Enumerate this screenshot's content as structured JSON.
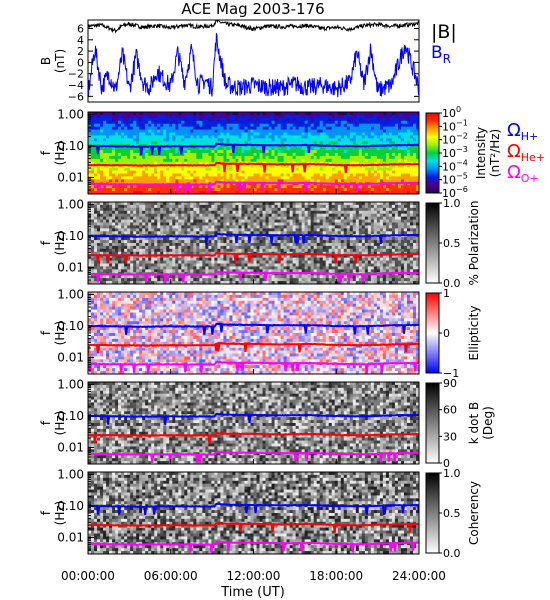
{
  "title": "ACE Mag 2003-176",
  "time_axis": {
    "label": "Time (UT)",
    "ticks": [
      "00:00:00",
      "06:00:00",
      "12:00:00",
      "18:00:00",
      "24:00:00"
    ],
    "hours": [
      0,
      6,
      12,
      18,
      24
    ],
    "range": [
      0,
      24
    ]
  },
  "freq_axis": {
    "ticks": [
      "1.00",
      "0.10",
      "0.01"
    ],
    "values": [
      1.0,
      0.1,
      0.01
    ],
    "range": [
      0.003,
      1.2
    ],
    "scale": "log"
  },
  "colors": {
    "b_total": "#000000",
    "b_r": "#0000ff",
    "omega_h": "#0000ff",
    "omega_he": "#ff0000",
    "omega_o": "#ff00ff"
  },
  "legend_labels": {
    "b_total": "|B|",
    "b_r_main": "B",
    "b_r_sub": "R",
    "omega_h_main": "Ω",
    "omega_h_sub": "H+",
    "omega_he_main": "Ω",
    "omega_he_sub": "He+",
    "omega_o_main": "Ω",
    "omega_o_sub": "O+"
  },
  "chart_data": [
    {
      "type": "line",
      "panel": "magnetic-field",
      "ylabel": "B",
      "yunit": "(nT)",
      "ylim": [
        -7,
        7.5
      ],
      "yticks": [
        -6,
        -4,
        -2,
        0,
        2,
        4,
        6
      ],
      "ytick_labels": [
        "−6",
        "−4",
        "−2",
        "0",
        "2",
        "4",
        "6"
      ],
      "series": [
        {
          "name": "|B|",
          "x": [
            0,
            1,
            2,
            2.5,
            3,
            4,
            5,
            6,
            7,
            8,
            9,
            9.3,
            10,
            11,
            12,
            13,
            14,
            15,
            16,
            17,
            18,
            19,
            20,
            21,
            22,
            23,
            24
          ],
          "values": [
            6.4,
            6.6,
            5.6,
            6.5,
            6.8,
            6.2,
            6.5,
            6.1,
            6.6,
            6.3,
            6.5,
            7.3,
            6.8,
            6.5,
            5.9,
            6.4,
            6.3,
            6.4,
            6.5,
            6.0,
            6.2,
            5.9,
            6.5,
            6.7,
            6.4,
            6.6,
            6.9
          ]
        },
        {
          "name": "B_R",
          "x": [
            0,
            0.5,
            1,
            1.5,
            2,
            2.5,
            3,
            3.5,
            4,
            4.5,
            5,
            5.5,
            6,
            6.5,
            7,
            7.5,
            8,
            8.5,
            9,
            9.3,
            10,
            11,
            12,
            13,
            14,
            15,
            16,
            17,
            18,
            19,
            19.5,
            20,
            20.5,
            21,
            22,
            23,
            24
          ],
          "values": [
            -5.5,
            2.5,
            -4.5,
            -2.0,
            -5.0,
            1.5,
            -4.8,
            1.2,
            -3.5,
            -4.5,
            -1.5,
            -3.0,
            -4.2,
            1.8,
            -3.5,
            2.2,
            -4.0,
            -3.2,
            -4.5,
            4.2,
            -4.0,
            -4.5,
            -4.0,
            -4.4,
            -4.5,
            -3.8,
            -4.5,
            -4.0,
            -4.7,
            -3.5,
            1.8,
            -4.0,
            2.5,
            -5.0,
            -4.0,
            3.2,
            -4.5
          ]
        }
      ]
    },
    {
      "type": "heatmap",
      "panel": "power-spectrum",
      "ylabel": "f",
      "yunit": "(Hz)",
      "colorbar": {
        "label": "Intensity",
        "unit": "(nT²/Hz)",
        "ticks": [
          {
            "base": "10",
            "exp": "0"
          },
          {
            "base": "10",
            "exp": "−1"
          },
          {
            "base": "10",
            "exp": "−2"
          },
          {
            "base": "10",
            "exp": "−3"
          },
          {
            "base": "10",
            "exp": "−4"
          },
          {
            "base": "10",
            "exp": "−5"
          },
          {
            "base": "10",
            "exp": "−6"
          }
        ],
        "palette": [
          "#2a0060",
          "#4a0090",
          "#0020e0",
          "#0090ff",
          "#00e0e0",
          "#00d040",
          "#a0f000",
          "#ffff00",
          "#ffa000",
          "#ff3000",
          "#ff0000"
        ]
      }
    },
    {
      "type": "heatmap",
      "panel": "polarization",
      "ylabel": "f",
      "yunit": "(Hz)",
      "colorbar": {
        "label": "% Polarization",
        "ticks": [
          "1.0",
          "0.5",
          "0.0"
        ],
        "palette": [
          "#ffffff",
          "#000000"
        ]
      }
    },
    {
      "type": "heatmap",
      "panel": "ellipticity",
      "ylabel": "f",
      "yunit": "(Hz)",
      "colorbar": {
        "label": "Ellipticity",
        "ticks": [
          "1",
          "0",
          "−1"
        ],
        "palette": [
          "#0000ff",
          "#ffffff",
          "#ff0000"
        ]
      }
    },
    {
      "type": "heatmap",
      "panel": "k-dot-b",
      "ylabel": "f",
      "yunit": "(Hz)",
      "colorbar": {
        "label": "k dot B",
        "unit": "(Deg)",
        "ticks": [
          "90",
          "60",
          "30",
          "0"
        ],
        "palette": [
          "#ffffff",
          "#000000"
        ]
      }
    },
    {
      "type": "heatmap",
      "panel": "coherency",
      "ylabel": "f",
      "yunit": "(Hz)",
      "colorbar": {
        "label": "Coherency",
        "ticks": [
          "1.0",
          "0.5",
          "0.0"
        ],
        "palette": [
          "#ffffff",
          "#000000"
        ]
      }
    },
    {
      "type": "line",
      "name": "gyrofrequency-curves",
      "series": [
        {
          "name": "Ω_H+",
          "x": [
            0,
            2,
            4,
            6,
            8,
            9.2,
            9.3,
            10,
            12,
            14,
            16,
            18,
            20,
            22,
            24
          ],
          "values": [
            0.1,
            0.098,
            0.095,
            0.098,
            0.097,
            0.097,
            0.118,
            0.11,
            0.108,
            0.105,
            0.107,
            0.1,
            0.098,
            0.105,
            0.108
          ]
        },
        {
          "name": "Ω_He+",
          "x": [
            0,
            2,
            4,
            6,
            8,
            9.2,
            9.3,
            10,
            12,
            14,
            16,
            18,
            20,
            22,
            24
          ],
          "values": [
            0.025,
            0.0245,
            0.024,
            0.0245,
            0.0243,
            0.0243,
            0.029,
            0.0275,
            0.027,
            0.026,
            0.027,
            0.025,
            0.0245,
            0.026,
            0.027
          ]
        },
        {
          "name": "Ω_O+",
          "x": [
            0,
            2,
            4,
            6,
            8,
            9.2,
            9.3,
            10,
            12,
            14,
            16,
            18,
            20,
            22,
            24
          ],
          "values": [
            0.0063,
            0.0061,
            0.006,
            0.0061,
            0.006,
            0.006,
            0.0073,
            0.0069,
            0.0068,
            0.0066,
            0.0067,
            0.0063,
            0.0061,
            0.0066,
            0.0068
          ]
        }
      ]
    }
  ]
}
